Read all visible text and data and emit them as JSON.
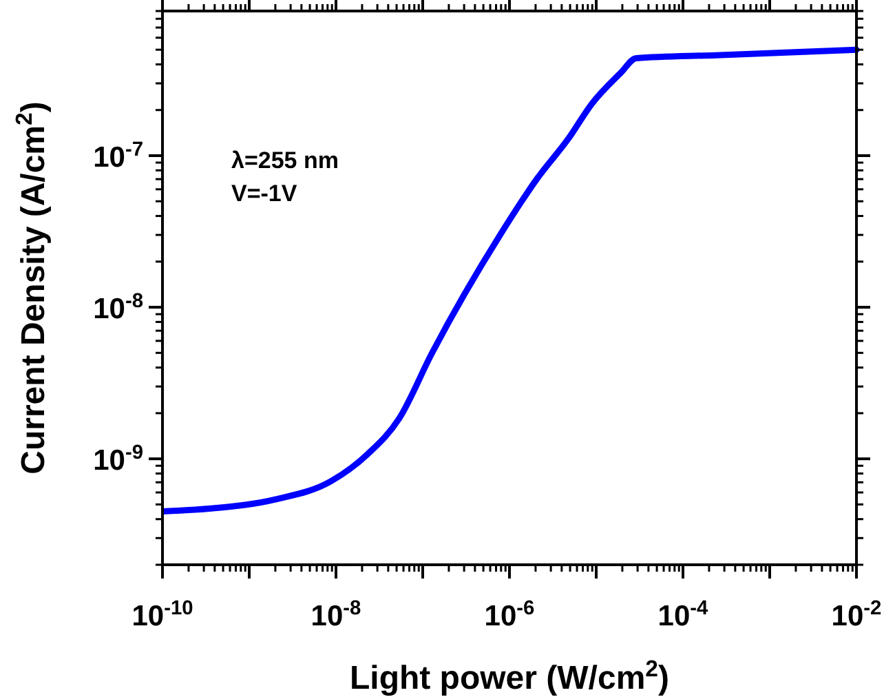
{
  "chart_data": {
    "type": "line",
    "xlabel": "Light power (W/cm$^{2}$)",
    "ylabel": "Current Density (A/cm$^{2}$)",
    "log": "xy",
    "xlim": [
      1e-10,
      0.01
    ],
    "ylim": [
      2e-10,
      9e-07
    ],
    "xticks": [
      {
        "value": 1e-10,
        "label": "10$^{-10}$"
      },
      {
        "value": 1e-09,
        "label": null
      },
      {
        "value": 1e-08,
        "label": "10$^{-8}$"
      },
      {
        "value": 1e-07,
        "label": null
      },
      {
        "value": 1e-06,
        "label": "10$^{-6}$"
      },
      {
        "value": 1e-05,
        "label": null
      },
      {
        "value": 0.0001,
        "label": "10$^{-4}$"
      },
      {
        "value": 0.001,
        "label": null
      },
      {
        "value": 0.01,
        "label": "10$^{-2}$"
      }
    ],
    "yticks": [
      {
        "value": 1e-09,
        "label": "10$^{-9}$"
      },
      {
        "value": 1e-08,
        "label": "10$^{-8}$"
      },
      {
        "value": 1e-07,
        "label": "10$^{-7}$"
      }
    ],
    "annotations": [
      "λ=255 nm",
      "V=-1V"
    ],
    "grid": false,
    "marker": "none",
    "line_style": "solid",
    "series": [
      {
        "color": "#0000ff",
        "x": [
          1e-10,
          3.6e-10,
          2e-09,
          8.7e-09,
          2.3e-08,
          5.4e-08,
          1.26e-07,
          7.8e-07,
          2.1e-06,
          4.8e-06,
          8.9e-06,
          1.9e-05,
          2.9e-05,
          0.00024,
          0.01
        ],
        "values": [
          4.5e-10,
          4.7e-10,
          5.4e-10,
          7.1e-10,
          1.07e-09,
          1.86e-09,
          4.9e-09,
          3e-08,
          7.1e-08,
          1.3e-07,
          2.2e-07,
          3.5e-07,
          4.4e-07,
          4.6e-07,
          5e-07
        ]
      }
    ]
  }
}
